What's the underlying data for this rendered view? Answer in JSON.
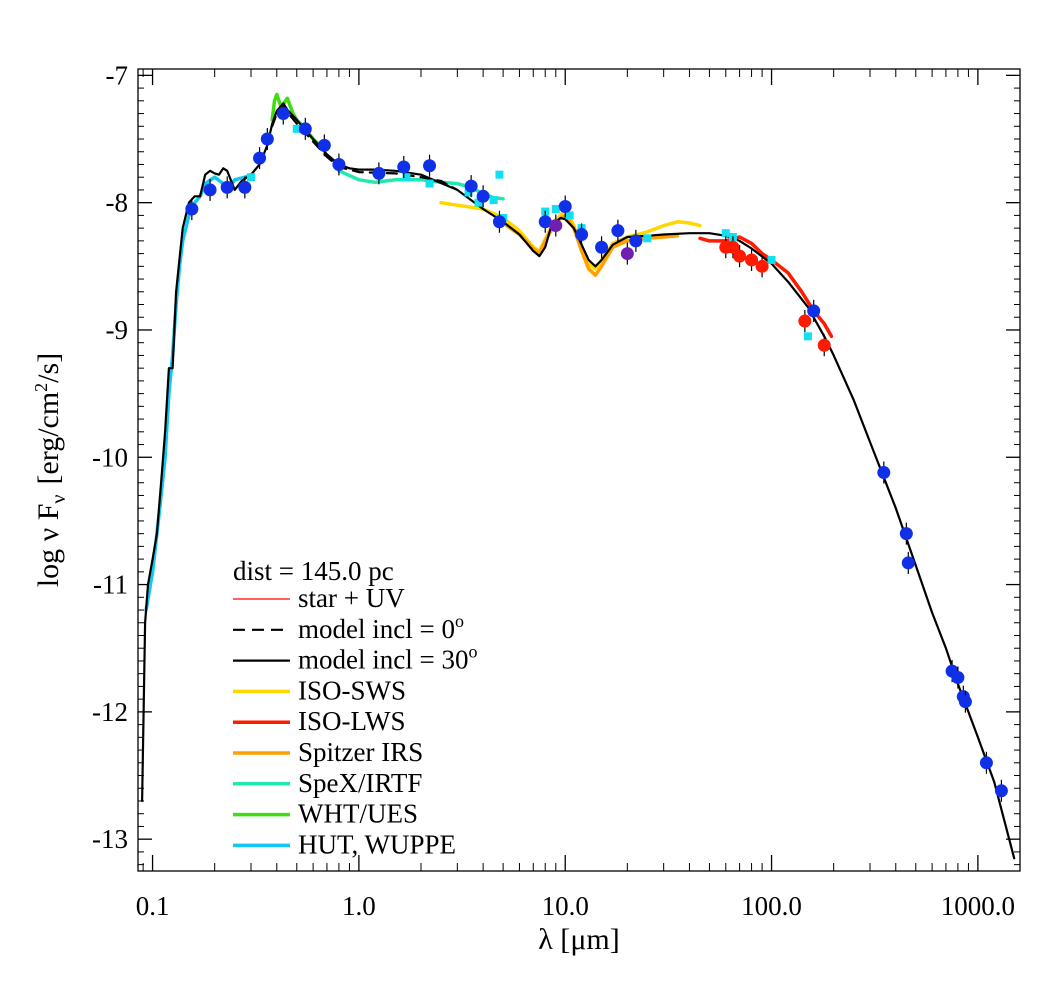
{
  "chart_data": {
    "type": "scatter",
    "x_scale": "log",
    "xlim": [
      0.085,
      1600
    ],
    "ylim": [
      -13.25,
      -6.95
    ],
    "xlabel_prefix": "λ [",
    "xlabel_unit": "μm",
    "xlabel_suffix": "]",
    "ylabel_main": "log ν F",
    "ylabel_sub": "ν",
    "ylabel_unit_a": "[erg/cm",
    "ylabel_unit_sup": "2",
    "ylabel_unit_b": "/s]",
    "xticks": [
      {
        "value": 0.1,
        "label": "0.1"
      },
      {
        "value": 1,
        "label": "1.0"
      },
      {
        "value": 10,
        "label": "10.0"
      },
      {
        "value": 100,
        "label": "100.0"
      },
      {
        "value": 1000,
        "label": "1000.0"
      }
    ],
    "yticks": [
      {
        "value": -7,
        "label": "-7"
      },
      {
        "value": -8,
        "label": "-8"
      },
      {
        "value": -9,
        "label": "-9"
      },
      {
        "value": -10,
        "label": "-10"
      },
      {
        "value": -11,
        "label": "-11"
      },
      {
        "value": -12,
        "label": "-12"
      },
      {
        "value": -13,
        "label": "-13"
      }
    ],
    "legend": {
      "placement": "bottom-left",
      "header": "dist = 145.0 pc",
      "entries": [
        {
          "label": "star + UV",
          "color": "#ff0000",
          "dash": "solid",
          "weight": "thin"
        },
        {
          "label": "model incl = 0",
          "superscript": "o",
          "color": "#000000",
          "dash": "dashed",
          "weight": "normal"
        },
        {
          "label": "model incl = 30",
          "superscript": "o",
          "color": "#000000",
          "dash": "solid",
          "weight": "normal"
        },
        {
          "label": "ISO-SWS",
          "color": "#ffd700",
          "dash": "solid",
          "weight": "thick"
        },
        {
          "label": "ISO-LWS",
          "color": "#ff1a00",
          "dash": "solid",
          "weight": "thick"
        },
        {
          "label": "Spitzer IRS",
          "color": "#ffa000",
          "dash": "solid",
          "weight": "thick"
        },
        {
          "label": "SpeX/IRTF",
          "color": "#20e8b0",
          "dash": "solid",
          "weight": "thick"
        },
        {
          "label": "WHT/UES",
          "color": "#40dd10",
          "dash": "solid",
          "weight": "thick"
        },
        {
          "label": "HUT, WUPPE",
          "color": "#10c8f0",
          "dash": "solid",
          "weight": "thick"
        }
      ]
    },
    "series": [
      {
        "name": "model incl = 30",
        "style": "line",
        "color": "#000000",
        "dash": "solid",
        "points": [
          [
            0.089,
            -12.7
          ],
          [
            0.092,
            -11.3
          ],
          [
            0.095,
            -11.0
          ],
          [
            0.1,
            -10.8
          ],
          [
            0.105,
            -10.6
          ],
          [
            0.11,
            -10.2
          ],
          [
            0.115,
            -9.8
          ],
          [
            0.12,
            -9.3
          ],
          [
            0.125,
            -9.3
          ],
          [
            0.13,
            -8.7
          ],
          [
            0.14,
            -8.2
          ],
          [
            0.15,
            -8.0
          ],
          [
            0.16,
            -7.95
          ],
          [
            0.17,
            -7.95
          ],
          [
            0.18,
            -7.78
          ],
          [
            0.19,
            -7.75
          ],
          [
            0.2,
            -7.77
          ],
          [
            0.21,
            -7.78
          ],
          [
            0.22,
            -7.73
          ],
          [
            0.23,
            -7.75
          ],
          [
            0.25,
            -7.9
          ],
          [
            0.27,
            -7.83
          ],
          [
            0.3,
            -7.78
          ],
          [
            0.33,
            -7.7
          ],
          [
            0.36,
            -7.55
          ],
          [
            0.38,
            -7.38
          ],
          [
            0.4,
            -7.28
          ],
          [
            0.43,
            -7.22
          ],
          [
            0.45,
            -7.27
          ],
          [
            0.5,
            -7.35
          ],
          [
            0.55,
            -7.43
          ],
          [
            0.6,
            -7.5
          ],
          [
            0.7,
            -7.62
          ],
          [
            0.8,
            -7.7
          ],
          [
            0.9,
            -7.73
          ],
          [
            1.0,
            -7.74
          ],
          [
            1.2,
            -7.74
          ],
          [
            1.5,
            -7.75
          ],
          [
            2.0,
            -7.78
          ],
          [
            3.0,
            -7.9
          ],
          [
            4.0,
            -8.05
          ],
          [
            5.0,
            -8.15
          ],
          [
            6.0,
            -8.25
          ],
          [
            7.0,
            -8.38
          ],
          [
            7.5,
            -8.42
          ],
          [
            8.0,
            -8.35
          ],
          [
            8.5,
            -8.2
          ],
          [
            9.0,
            -8.15
          ],
          [
            9.5,
            -8.12
          ],
          [
            10.0,
            -8.13
          ],
          [
            11.0,
            -8.2
          ],
          [
            12.0,
            -8.33
          ],
          [
            13.0,
            -8.45
          ],
          [
            14.0,
            -8.5
          ],
          [
            15.0,
            -8.45
          ],
          [
            17.0,
            -8.33
          ],
          [
            20.0,
            -8.27
          ],
          [
            25.0,
            -8.26
          ],
          [
            30.0,
            -8.25
          ],
          [
            40.0,
            -8.24
          ],
          [
            50.0,
            -8.24
          ],
          [
            60.0,
            -8.26
          ],
          [
            70.0,
            -8.3
          ],
          [
            80.0,
            -8.36
          ],
          [
            100.0,
            -8.48
          ],
          [
            120.0,
            -8.62
          ],
          [
            150.0,
            -8.82
          ],
          [
            180.0,
            -9.05
          ],
          [
            200.0,
            -9.2
          ],
          [
            250.0,
            -9.55
          ],
          [
            300.0,
            -9.88
          ],
          [
            400.0,
            -10.4
          ],
          [
            500.0,
            -10.85
          ],
          [
            600.0,
            -11.22
          ],
          [
            700.0,
            -11.5
          ],
          [
            800.0,
            -11.78
          ],
          [
            1000.0,
            -12.2
          ],
          [
            1200.0,
            -12.55
          ],
          [
            1500.0,
            -13.15
          ]
        ]
      },
      {
        "name": "model incl = 0",
        "style": "line",
        "color": "#000000",
        "dash": "dashed",
        "points": [
          [
            0.38,
            -7.4
          ],
          [
            0.4,
            -7.3
          ],
          [
            0.43,
            -7.25
          ],
          [
            0.5,
            -7.38
          ],
          [
            0.6,
            -7.52
          ],
          [
            0.7,
            -7.64
          ],
          [
            0.8,
            -7.72
          ],
          [
            1.0,
            -7.76
          ],
          [
            1.5,
            -7.77
          ],
          [
            2.0,
            -7.8
          ],
          [
            2.5,
            -7.83
          ],
          [
            3.0,
            -7.9
          ]
        ]
      },
      {
        "name": "HUT, WUPPE",
        "style": "line",
        "color": "#10c8f0",
        "dash": "solid",
        "points": [
          [
            0.093,
            -11.2
          ],
          [
            0.1,
            -10.9
          ],
          [
            0.105,
            -10.6
          ],
          [
            0.11,
            -10.3
          ],
          [
            0.115,
            -10.0
          ],
          [
            0.12,
            -9.5
          ],
          [
            0.125,
            -9.2
          ],
          [
            0.13,
            -8.8
          ],
          [
            0.135,
            -8.5
          ],
          [
            0.14,
            -8.3
          ],
          [
            0.15,
            -8.1
          ],
          [
            0.16,
            -8.0
          ],
          [
            0.17,
            -7.95
          ],
          [
            0.18,
            -7.85
          ],
          [
            0.2,
            -7.8
          ],
          [
            0.22,
            -7.85
          ],
          [
            0.23,
            -7.9
          ],
          [
            0.25,
            -7.82
          ],
          [
            0.28,
            -7.8
          ],
          [
            0.3,
            -7.78
          ]
        ]
      },
      {
        "name": "WHT/UES",
        "style": "line",
        "color": "#40dd10",
        "dash": "solid",
        "points": [
          [
            0.38,
            -7.35
          ],
          [
            0.39,
            -7.2
          ],
          [
            0.4,
            -7.15
          ],
          [
            0.42,
            -7.25
          ],
          [
            0.45,
            -7.18
          ],
          [
            0.48,
            -7.3
          ],
          [
            0.5,
            -7.35
          ],
          [
            0.55,
            -7.42
          ],
          [
            0.6,
            -7.5
          ],
          [
            0.65,
            -7.55
          ]
        ]
      },
      {
        "name": "SpeX/IRTF",
        "style": "line",
        "color": "#20e8b0",
        "dash": "solid",
        "points": [
          [
            0.8,
            -7.75
          ],
          [
            1.0,
            -7.82
          ],
          [
            1.2,
            -7.84
          ],
          [
            1.5,
            -7.82
          ],
          [
            2.0,
            -7.82
          ],
          [
            2.5,
            -7.84
          ],
          [
            3.0,
            -7.85
          ],
          [
            3.5,
            -7.88
          ],
          [
            4.0,
            -7.93
          ],
          [
            4.5,
            -7.96
          ],
          [
            5.0,
            -7.97
          ]
        ]
      },
      {
        "name": "Spitzer IRS",
        "style": "line",
        "color": "#ffa000",
        "dash": "solid",
        "points": [
          [
            5.2,
            -8.18
          ],
          [
            6.0,
            -8.25
          ],
          [
            7.0,
            -8.36
          ],
          [
            7.5,
            -8.4
          ],
          [
            8.0,
            -8.3
          ],
          [
            9.0,
            -8.15
          ],
          [
            10.0,
            -8.1
          ],
          [
            11.0,
            -8.2
          ],
          [
            12.0,
            -8.38
          ],
          [
            13.0,
            -8.52
          ],
          [
            14.0,
            -8.57
          ],
          [
            15.0,
            -8.5
          ],
          [
            17.0,
            -8.35
          ],
          [
            20.0,
            -8.3
          ],
          [
            25.0,
            -8.28
          ],
          [
            30.0,
            -8.27
          ],
          [
            35.0,
            -8.26
          ]
        ]
      },
      {
        "name": "ISO-SWS",
        "style": "line",
        "color": "#ffd700",
        "dash": "solid",
        "points": [
          [
            2.5,
            -8.0
          ],
          [
            3.0,
            -8.02
          ],
          [
            4.0,
            -8.05
          ],
          [
            5.0,
            -8.12
          ],
          [
            6.0,
            -8.22
          ],
          [
            7.0,
            -8.35
          ],
          [
            7.5,
            -8.38
          ],
          [
            8.5,
            -8.2
          ],
          [
            10.0,
            -8.05
          ],
          [
            11.0,
            -8.18
          ],
          [
            12.0,
            -8.35
          ],
          [
            13.0,
            -8.48
          ],
          [
            14.0,
            -8.52
          ],
          [
            15.0,
            -8.45
          ],
          [
            17.0,
            -8.32
          ],
          [
            20.0,
            -8.27
          ],
          [
            25.0,
            -8.23
          ],
          [
            30.0,
            -8.18
          ],
          [
            35.0,
            -8.15
          ],
          [
            40.0,
            -8.16
          ],
          [
            45.0,
            -8.18
          ]
        ]
      },
      {
        "name": "ISO-LWS",
        "style": "line",
        "color": "#ff1a00",
        "dash": "solid",
        "points": [
          [
            45.0,
            -8.28
          ],
          [
            50.0,
            -8.3
          ],
          [
            60.0,
            -8.3
          ],
          [
            70.0,
            -8.27
          ],
          [
            80.0,
            -8.32
          ],
          [
            90.0,
            -8.4
          ],
          [
            100.0,
            -8.45
          ],
          [
            120.0,
            -8.55
          ],
          [
            140.0,
            -8.7
          ],
          [
            160.0,
            -8.85
          ],
          [
            180.0,
            -8.95
          ],
          [
            195.0,
            -9.05
          ]
        ]
      },
      {
        "name": "photometry",
        "style": "markers",
        "color": "#1030e8",
        "points": [
          [
            0.155,
            -8.05
          ],
          [
            0.19,
            -7.9
          ],
          [
            0.23,
            -7.88
          ],
          [
            0.28,
            -7.88
          ],
          [
            0.33,
            -7.65
          ],
          [
            0.36,
            -7.5
          ],
          [
            0.43,
            -7.3
          ],
          [
            0.55,
            -7.42
          ],
          [
            0.68,
            -7.55
          ],
          [
            0.8,
            -7.7
          ],
          [
            1.25,
            -7.77
          ],
          [
            1.65,
            -7.72
          ],
          [
            2.2,
            -7.71
          ],
          [
            3.5,
            -7.87
          ],
          [
            4.0,
            -7.95
          ],
          [
            4.8,
            -8.15
          ],
          [
            8.0,
            -8.15
          ],
          [
            10.0,
            -8.03
          ],
          [
            12.0,
            -8.25
          ],
          [
            15.0,
            -8.35
          ],
          [
            18.0,
            -8.22
          ],
          [
            22.0,
            -8.3
          ],
          [
            350.0,
            -10.12
          ],
          [
            450.0,
            -10.6
          ],
          [
            460.0,
            -10.83
          ],
          [
            750.0,
            -11.68
          ],
          [
            800.0,
            -11.73
          ],
          [
            850.0,
            -11.88
          ],
          [
            870.0,
            -11.92
          ],
          [
            1100.0,
            -12.4
          ],
          [
            1300.0,
            -12.62
          ],
          [
            160.0,
            -8.85
          ]
        ]
      },
      {
        "name": "LWS photometry",
        "style": "markers",
        "color": "#ff1a00",
        "points": [
          [
            60.0,
            -8.35
          ],
          [
            65.0,
            -8.35
          ],
          [
            70.0,
            -8.42
          ],
          [
            80.0,
            -8.45
          ],
          [
            90.0,
            -8.5
          ],
          [
            145.0,
            -8.93
          ],
          [
            180.0,
            -9.12
          ]
        ]
      },
      {
        "name": "extra",
        "style": "markers",
        "color": "#7020b0",
        "points": [
          [
            20.0,
            -8.4
          ],
          [
            9.0,
            -8.18
          ]
        ]
      },
      {
        "name": "cyan squares",
        "style": "squares",
        "color": "#10e0f0",
        "points": [
          [
            0.3,
            -7.8
          ],
          [
            0.5,
            -7.42
          ],
          [
            1.25,
            -7.78
          ],
          [
            1.7,
            -7.8
          ],
          [
            2.2,
            -7.85
          ],
          [
            3.4,
            -7.92
          ],
          [
            3.8,
            -8.0
          ],
          [
            4.5,
            -7.98
          ],
          [
            4.8,
            -7.78
          ],
          [
            5.0,
            -8.12
          ],
          [
            8.0,
            -8.07
          ],
          [
            9.0,
            -8.05
          ],
          [
            10.5,
            -8.1
          ],
          [
            12.0,
            -8.2
          ],
          [
            25.0,
            -8.28
          ],
          [
            60.0,
            -8.24
          ],
          [
            65.0,
            -8.27
          ],
          [
            150.0,
            -9.05
          ],
          [
            100.0,
            -8.45
          ]
        ]
      }
    ]
  }
}
